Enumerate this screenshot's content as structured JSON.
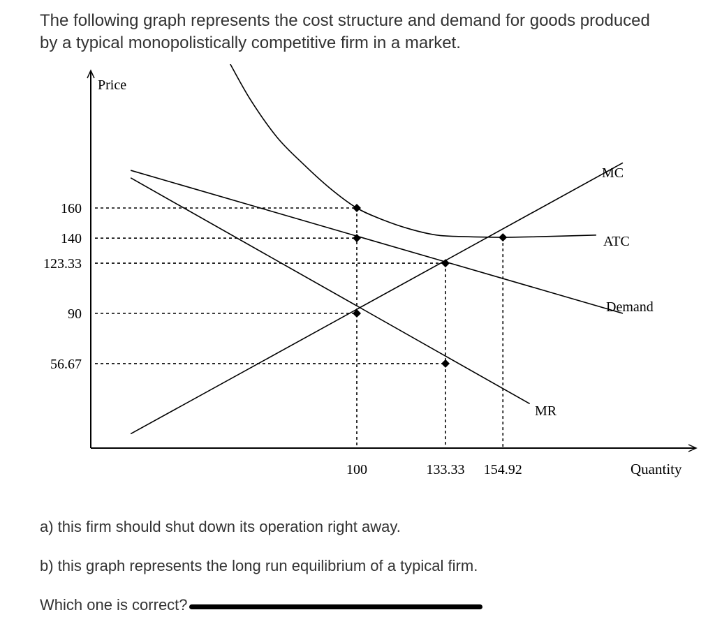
{
  "question": {
    "line1": "The following graph represents the cost structure and demand for goods produced",
    "line2": "by a typical monopolistically competitive firm in a market."
  },
  "options": {
    "a": "a) this firm should shut down its operation right away.",
    "b": "b) this graph represents the long run equilibrium of a typical firm.",
    "prompt": "Which one is correct?"
  },
  "chart_data": {
    "type": "line",
    "xlabel": "Quantity",
    "ylabel": "Price",
    "x_ticks": [
      {
        "value": 100,
        "label": "100"
      },
      {
        "value": 133.33,
        "label": "133.33"
      },
      {
        "value": 154.92,
        "label": "154.92"
      }
    ],
    "y_ticks": [
      {
        "value": 160,
        "label": "160"
      },
      {
        "value": 140,
        "label": "140"
      },
      {
        "value": 123.33,
        "label": "123.33"
      },
      {
        "value": 90,
        "label": "90"
      },
      {
        "value": 56.67,
        "label": "56.67"
      }
    ],
    "series": [
      {
        "name": "Demand",
        "points": [
          [
            15,
            185
          ],
          [
            200,
            90
          ]
        ]
      },
      {
        "name": "MR",
        "points": [
          [
            15,
            180
          ],
          [
            165,
            30
          ]
        ]
      },
      {
        "name": "MC",
        "points": [
          [
            15,
            10
          ],
          [
            200,
            190
          ]
        ]
      },
      {
        "name": "ATC",
        "points": [
          [
            52,
            257
          ],
          [
            60,
            232
          ],
          [
            70,
            207
          ],
          [
            80,
            189
          ],
          [
            90,
            173
          ],
          [
            100,
            160
          ],
          [
            110,
            152
          ],
          [
            120,
            146
          ],
          [
            130,
            142
          ],
          [
            140,
            141
          ],
          [
            154.92,
            140.5
          ],
          [
            170,
            141
          ],
          [
            190,
            142
          ]
        ]
      }
    ],
    "key_points": [
      {
        "x": 100,
        "y": 160
      },
      {
        "x": 100,
        "y": 140
      },
      {
        "x": 100,
        "y": 90
      },
      {
        "x": 133.33,
        "y": 123.33
      },
      {
        "x": 133.33,
        "y": 56.67
      },
      {
        "x": 154.92,
        "y": 140.5
      }
    ],
    "guides": {
      "horizontal": [
        {
          "y": 160,
          "x_end": 100
        },
        {
          "y": 140,
          "x_end": 100
        },
        {
          "y": 123.33,
          "x_end": 133.33
        },
        {
          "y": 90,
          "x_end": 100
        },
        {
          "y": 56.67,
          "x_end": 133.33
        }
      ],
      "vertical": [
        {
          "x": 100,
          "y_end": 160
        },
        {
          "x": 133.33,
          "y_end": 123.33
        },
        {
          "x": 154.92,
          "y_end": 140.5
        }
      ]
    }
  }
}
